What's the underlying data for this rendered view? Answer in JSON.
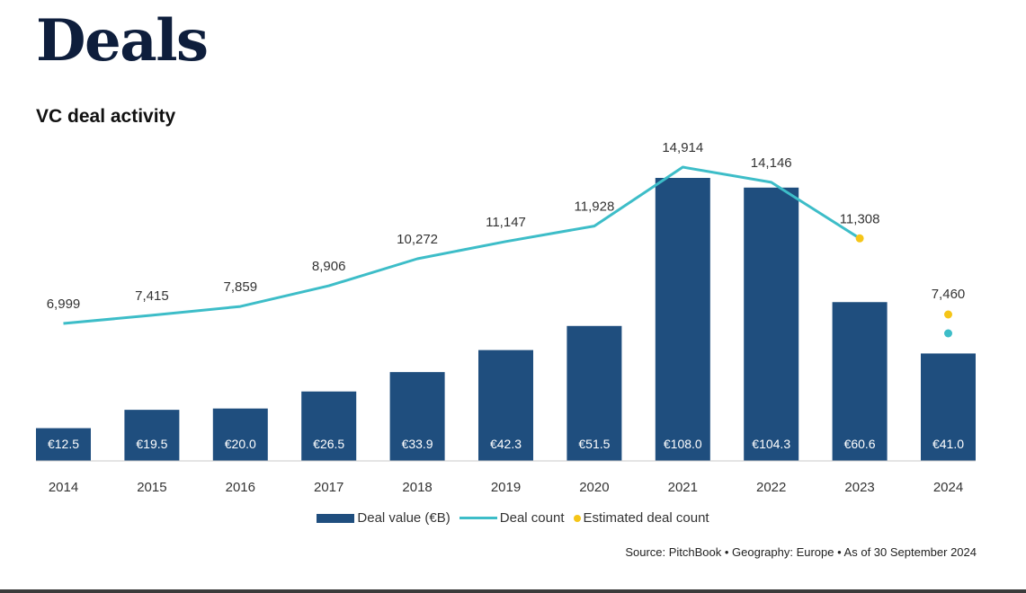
{
  "page_title": "Deals",
  "colors": {
    "bar": "#1f4e7e",
    "line": "#3dbdc8",
    "estimate": "#f5c518",
    "title": "#0e1e3c"
  },
  "chart_data": {
    "type": "bar",
    "title": "VC deal activity",
    "categories": [
      "2014",
      "2015",
      "2016",
      "2017",
      "2018",
      "2019",
      "2020",
      "2021",
      "2022",
      "2023",
      "2024"
    ],
    "series": [
      {
        "name": "Deal value (€B)",
        "type": "bar",
        "values": [
          12.5,
          19.5,
          20.0,
          26.5,
          33.9,
          42.3,
          51.5,
          108.0,
          104.3,
          60.6,
          41.0
        ],
        "labels": [
          "€12.5",
          "€19.5",
          "€20.0",
          "€26.5",
          "€33.9",
          "€42.3",
          "€51.5",
          "€108.0",
          "€104.3",
          "€60.6",
          "€41.0"
        ]
      },
      {
        "name": "Deal count",
        "type": "line",
        "values": [
          6999,
          7415,
          7859,
          8906,
          10272,
          11147,
          11928,
          14914,
          14146,
          11308,
          7460
        ],
        "labels": [
          "6,999",
          "7,415",
          "7,859",
          "8,906",
          "10,272",
          "11,147",
          "11,928",
          "14,914",
          "14,146",
          "11,308",
          "7,460"
        ]
      },
      {
        "name": "Estimated deal count",
        "type": "scatter"
      }
    ],
    "legend_position": "bottom-center",
    "grid": false
  },
  "source": "Source: PitchBook  •  Geography: Europe  •  As of 30 September 2024"
}
